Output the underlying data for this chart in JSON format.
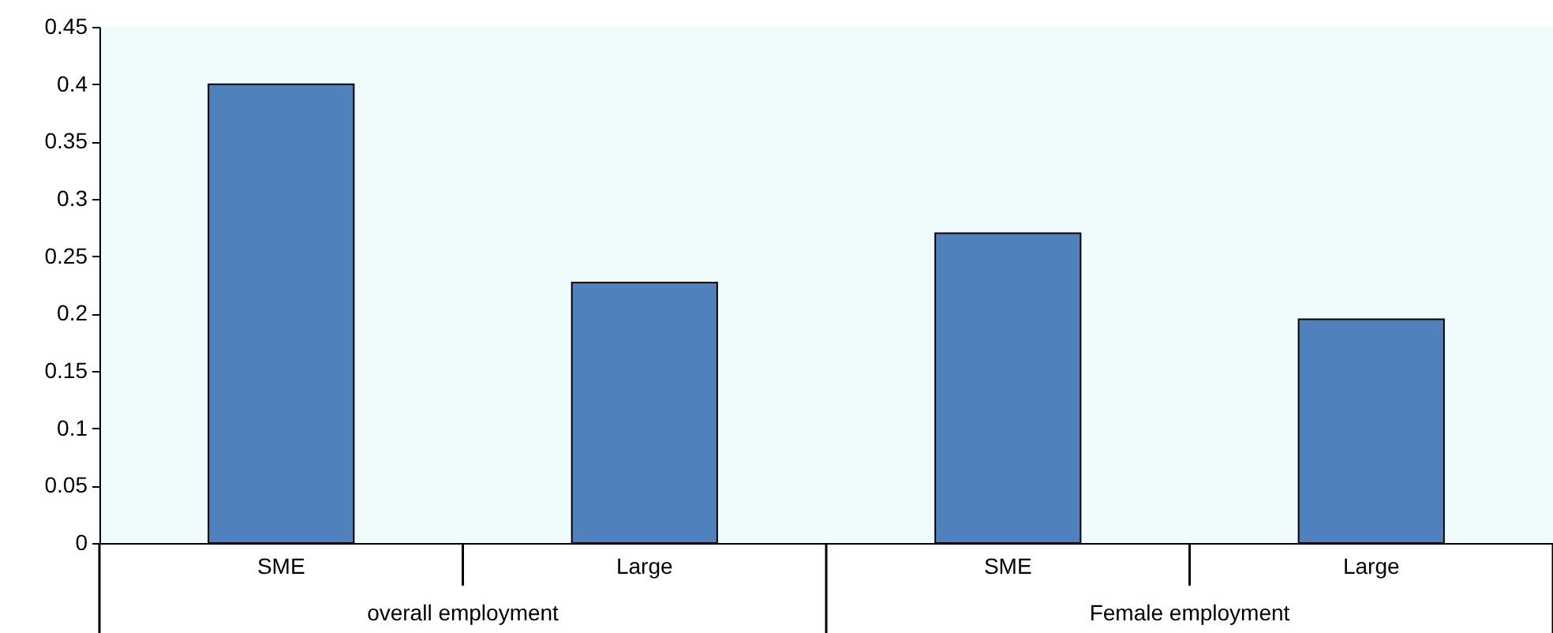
{
  "chart_data": {
    "type": "bar",
    "categories": [
      "SME",
      "Large",
      "SME",
      "Large"
    ],
    "values": [
      0.4,
      0.227,
      0.27,
      0.195
    ],
    "color": "#4f81bd",
    "ylim": [
      0,
      0.45
    ],
    "yticks": [
      0,
      0.05,
      0.1,
      0.15,
      0.2,
      0.25,
      0.3,
      0.35,
      0.4,
      0.45
    ],
    "annotations": [
      "overall employment",
      "Female employment"
    ]
  }
}
